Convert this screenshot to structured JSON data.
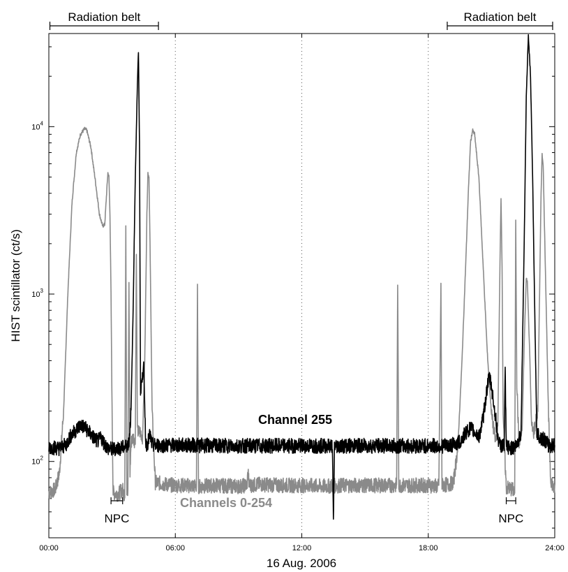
{
  "chart_data": {
    "type": "line",
    "title": "",
    "xlabel": "16 Aug. 2006",
    "ylabel": "HIST scintillator (ct/s)",
    "xlim": [
      0,
      24
    ],
    "ylim": [
      35,
      36000
    ],
    "yscale": "log",
    "grid": "vertical dotted at 06:00, 12:00, 18:00",
    "x_ticks": [
      {
        "value": 0,
        "label": "00:00"
      },
      {
        "value": 6,
        "label": "06:00"
      },
      {
        "value": 12,
        "label": "12:00"
      },
      {
        "value": 18,
        "label": "18:00"
      },
      {
        "value": 24,
        "label": "24:00"
      }
    ],
    "y_ticks": [
      {
        "value": 100,
        "base": "10",
        "exp": "2"
      },
      {
        "value": 1000,
        "base": "10",
        "exp": "3"
      },
      {
        "value": 10000,
        "base": "10",
        "exp": "4"
      }
    ],
    "series": [
      {
        "name": "Channels 0-254",
        "color": "#8a8a8a",
        "points": [
          [
            0,
            65
          ],
          [
            0.3,
            68
          ],
          [
            0.5,
            85
          ],
          [
            0.7,
            200
          ],
          [
            0.9,
            1000
          ],
          [
            1.1,
            3500
          ],
          [
            1.3,
            7000
          ],
          [
            1.5,
            9000
          ],
          [
            1.7,
            9700
          ],
          [
            1.8,
            9500
          ],
          [
            2.0,
            7500
          ],
          [
            2.2,
            4800
          ],
          [
            2.4,
            3000
          ],
          [
            2.55,
            2550
          ],
          [
            2.65,
            2600
          ],
          [
            2.75,
            4200
          ],
          [
            2.8,
            5300
          ],
          [
            2.85,
            5000
          ],
          [
            2.9,
            3000
          ],
          [
            2.95,
            1000
          ],
          [
            3.0,
            200
          ],
          [
            3.05,
            65
          ],
          [
            3.3,
            64
          ],
          [
            3.5,
            68
          ],
          [
            3.6,
            62
          ],
          [
            3.65,
            2500
          ],
          [
            3.7,
            68
          ],
          [
            3.75,
            68
          ],
          [
            3.8,
            1150
          ],
          [
            3.85,
            85
          ],
          [
            3.9,
            130
          ],
          [
            4.0,
            140
          ],
          [
            4.1,
            130
          ],
          [
            4.15,
            1700
          ],
          [
            4.2,
            150
          ],
          [
            4.35,
            150
          ],
          [
            4.45,
            140
          ],
          [
            4.55,
            400
          ],
          [
            4.65,
            3000
          ],
          [
            4.7,
            5300
          ],
          [
            4.75,
            5000
          ],
          [
            4.8,
            2000
          ],
          [
            4.9,
            200
          ],
          [
            5.05,
            75
          ],
          [
            5.5,
            73
          ],
          [
            6.0,
            72
          ],
          [
            6.5,
            72
          ],
          [
            7.0,
            71
          ],
          [
            7.05,
            1120
          ],
          [
            7.1,
            71
          ],
          [
            8.0,
            72
          ],
          [
            9.0,
            71
          ],
          [
            9.4,
            72
          ],
          [
            9.45,
            88
          ],
          [
            9.5,
            72
          ],
          [
            10.0,
            73
          ],
          [
            11.0,
            72
          ],
          [
            12.0,
            72
          ],
          [
            13.0,
            71
          ],
          [
            14.0,
            72
          ],
          [
            15.0,
            72
          ],
          [
            16.0,
            72
          ],
          [
            16.5,
            72
          ],
          [
            16.55,
            1120
          ],
          [
            16.6,
            72
          ],
          [
            17.5,
            72
          ],
          [
            18.0,
            72
          ],
          [
            18.5,
            71
          ],
          [
            18.6,
            1150
          ],
          [
            18.65,
            72
          ],
          [
            19.0,
            73
          ],
          [
            19.2,
            75
          ],
          [
            19.4,
            120
          ],
          [
            19.6,
            400
          ],
          [
            19.8,
            1800
          ],
          [
            19.9,
            4000
          ],
          [
            20.0,
            8000
          ],
          [
            20.1,
            9500
          ],
          [
            20.2,
            9000
          ],
          [
            20.4,
            5000
          ],
          [
            20.6,
            1500
          ],
          [
            20.8,
            450
          ],
          [
            21.0,
            190
          ],
          [
            21.2,
            130
          ],
          [
            21.3,
            160
          ],
          [
            21.4,
            1500
          ],
          [
            21.45,
            3800
          ],
          [
            21.5,
            1500
          ],
          [
            21.55,
            200
          ],
          [
            21.6,
            130
          ],
          [
            21.7,
            70
          ],
          [
            22.0,
            68
          ],
          [
            22.1,
            65
          ],
          [
            22.15,
            2800
          ],
          [
            22.2,
            300
          ],
          [
            22.3,
            130
          ],
          [
            22.45,
            150
          ],
          [
            22.55,
            500
          ],
          [
            22.65,
            1250
          ],
          [
            22.7,
            1200
          ],
          [
            22.8,
            500
          ],
          [
            22.9,
            160
          ],
          [
            23.0,
            150
          ],
          [
            23.2,
            200
          ],
          [
            23.3,
            1500
          ],
          [
            23.35,
            4000
          ],
          [
            23.4,
            6800
          ],
          [
            23.45,
            6000
          ],
          [
            23.5,
            3000
          ],
          [
            23.6,
            800
          ],
          [
            23.7,
            200
          ],
          [
            23.8,
            80
          ],
          [
            24,
            65
          ]
        ]
      },
      {
        "name": "Channel 255",
        "color": "#000000",
        "points": [
          [
            0,
            122
          ],
          [
            0.5,
            120
          ],
          [
            0.8,
            125
          ],
          [
            1.0,
            140
          ],
          [
            1.3,
            155
          ],
          [
            1.5,
            165
          ],
          [
            1.7,
            160
          ],
          [
            1.9,
            150
          ],
          [
            2.1,
            140
          ],
          [
            2.3,
            132
          ],
          [
            2.5,
            138
          ],
          [
            2.6,
            130
          ],
          [
            2.8,
            120
          ],
          [
            3.0,
            118
          ],
          [
            3.2,
            120
          ],
          [
            3.4,
            120
          ],
          [
            3.6,
            122
          ],
          [
            3.7,
            125
          ],
          [
            3.8,
            130
          ],
          [
            3.9,
            200
          ],
          [
            4.0,
            800
          ],
          [
            4.1,
            5000
          ],
          [
            4.2,
            18000
          ],
          [
            4.25,
            28000
          ],
          [
            4.3,
            8000
          ],
          [
            4.35,
            270
          ],
          [
            4.4,
            300
          ],
          [
            4.45,
            310
          ],
          [
            4.5,
            400
          ],
          [
            4.55,
            210
          ],
          [
            4.6,
            125
          ],
          [
            4.7,
            130
          ],
          [
            4.8,
            145
          ],
          [
            4.9,
            125
          ],
          [
            5.5,
            125
          ],
          [
            6.0,
            125
          ],
          [
            7.0,
            125
          ],
          [
            8.0,
            124
          ],
          [
            9.0,
            124
          ],
          [
            10.0,
            124
          ],
          [
            11.0,
            124
          ],
          [
            12.0,
            124
          ],
          [
            13.0,
            124
          ],
          [
            13.45,
            124
          ],
          [
            13.5,
            42
          ],
          [
            13.55,
            124
          ],
          [
            14.0,
            124
          ],
          [
            15.0,
            124
          ],
          [
            16.0,
            124
          ],
          [
            17.0,
            124
          ],
          [
            18.0,
            124
          ],
          [
            19.0,
            124
          ],
          [
            19.5,
            130
          ],
          [
            19.8,
            150
          ],
          [
            20.0,
            158
          ],
          [
            20.2,
            150
          ],
          [
            20.4,
            140
          ],
          [
            20.6,
            180
          ],
          [
            20.8,
            280
          ],
          [
            20.9,
            320
          ],
          [
            21.0,
            280
          ],
          [
            21.2,
            180
          ],
          [
            21.3,
            140
          ],
          [
            21.4,
            125
          ],
          [
            21.5,
            125
          ],
          [
            21.6,
            122
          ],
          [
            21.65,
            340
          ],
          [
            21.7,
            122
          ],
          [
            22.0,
            120
          ],
          [
            22.2,
            125
          ],
          [
            22.4,
            150
          ],
          [
            22.55,
            2000
          ],
          [
            22.65,
            15000
          ],
          [
            22.75,
            35000
          ],
          [
            22.85,
            20000
          ],
          [
            22.95,
            5000
          ],
          [
            23.05,
            800
          ],
          [
            23.15,
            150
          ],
          [
            23.3,
            140
          ],
          [
            23.5,
            135
          ],
          [
            23.7,
            125
          ],
          [
            24,
            125
          ]
        ]
      }
    ],
    "annotations": [
      {
        "text": "Radiation belt",
        "x_start": 0.05,
        "x_end": 5.2
      },
      {
        "text": "Radiation belt",
        "x_start": 18.9,
        "x_end": 23.9
      },
      {
        "text": "NPC",
        "x_start": 2.95,
        "x_end": 3.5
      },
      {
        "text": "NPC",
        "x_start": 21.7,
        "x_end": 22.15
      }
    ]
  }
}
